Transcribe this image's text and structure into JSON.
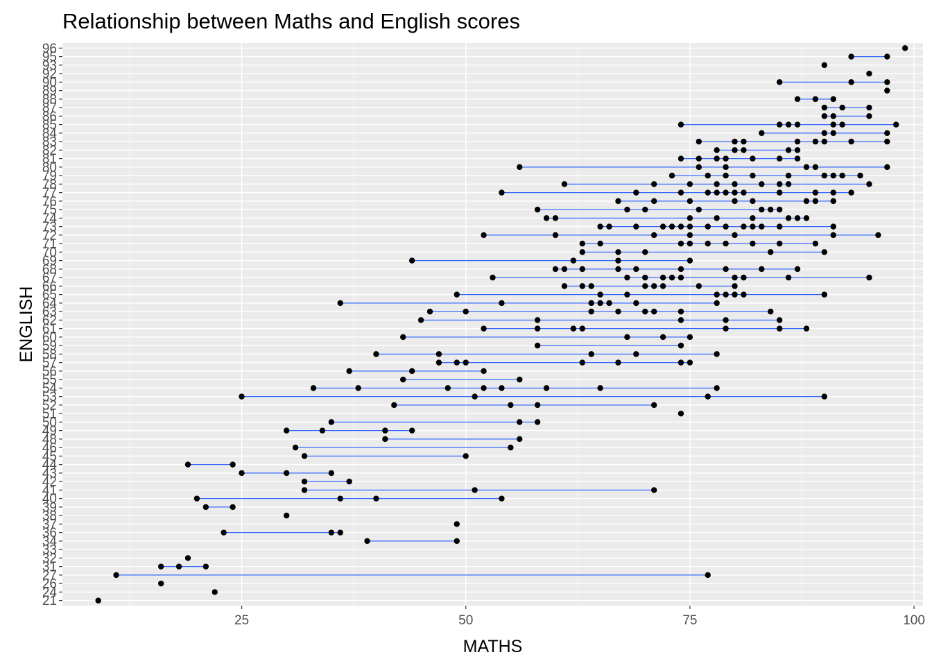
{
  "chart_data": {
    "type": "dot-range",
    "title": "Relationship between Maths and English scores",
    "xlabel": "MATHS",
    "ylabel": "ENGLISH",
    "xlim": [
      5,
      101
    ],
    "x_ticks": [
      25,
      50,
      75,
      100
    ],
    "grid": true,
    "colors": {
      "panel": "#ebebeb",
      "grid": "#ffffff",
      "segment": "#3366ff",
      "point": "#000000"
    },
    "categories": [
      "21",
      "24",
      "26",
      "27",
      "31",
      "32",
      "33",
      "34",
      "36",
      "37",
      "38",
      "39",
      "40",
      "41",
      "42",
      "43",
      "44",
      "45",
      "46",
      "48",
      "49",
      "50",
      "51",
      "52",
      "53",
      "54",
      "55",
      "56",
      "57",
      "58",
      "59",
      "60",
      "61",
      "62",
      "63",
      "64",
      "65",
      "66",
      "67",
      "68",
      "69",
      "70",
      "71",
      "72",
      "73",
      "74",
      "75",
      "76",
      "77",
      "78",
      "79",
      "80",
      "81",
      "82",
      "83",
      "84",
      "85",
      "86",
      "87",
      "88",
      "89",
      "90",
      "92",
      "93",
      "95",
      "96"
    ],
    "points": [
      {
        "english": "21",
        "maths": [
          9
        ]
      },
      {
        "english": "24",
        "maths": [
          22
        ]
      },
      {
        "english": "26",
        "maths": [
          16
        ]
      },
      {
        "english": "27",
        "maths": [
          11,
          77
        ]
      },
      {
        "english": "31",
        "maths": [
          16,
          18,
          21
        ]
      },
      {
        "english": "32",
        "maths": [
          19
        ]
      },
      {
        "english": "34",
        "maths": [
          39,
          49
        ]
      },
      {
        "english": "36",
        "maths": [
          23,
          35,
          36
        ]
      },
      {
        "english": "37",
        "maths": [
          49
        ]
      },
      {
        "english": "38",
        "maths": [
          30
        ]
      },
      {
        "english": "39",
        "maths": [
          21,
          24
        ]
      },
      {
        "english": "40",
        "maths": [
          20,
          36,
          40,
          54
        ]
      },
      {
        "english": "41",
        "maths": [
          32,
          51,
          71
        ]
      },
      {
        "english": "42",
        "maths": [
          32,
          37
        ]
      },
      {
        "english": "43",
        "maths": [
          25,
          30,
          35
        ]
      },
      {
        "english": "44",
        "maths": [
          19,
          24
        ]
      },
      {
        "english": "45",
        "maths": [
          32,
          50
        ]
      },
      {
        "english": "46",
        "maths": [
          31,
          55
        ]
      },
      {
        "english": "48",
        "maths": [
          41,
          56
        ]
      },
      {
        "english": "49",
        "maths": [
          30,
          34,
          41,
          44
        ]
      },
      {
        "english": "50",
        "maths": [
          35,
          56,
          58
        ]
      },
      {
        "english": "51",
        "maths": [
          74
        ]
      },
      {
        "english": "52",
        "maths": [
          42,
          55,
          58,
          71
        ]
      },
      {
        "english": "53",
        "maths": [
          25,
          51,
          77,
          90
        ]
      },
      {
        "english": "54",
        "maths": [
          33,
          38,
          48,
          52,
          54,
          59,
          65,
          78
        ]
      },
      {
        "english": "55",
        "maths": [
          43,
          56
        ]
      },
      {
        "english": "56",
        "maths": [
          37,
          44,
          52
        ]
      },
      {
        "english": "57",
        "maths": [
          47,
          49,
          50,
          63,
          67,
          74,
          75
        ]
      },
      {
        "english": "58",
        "maths": [
          40,
          47,
          64,
          69,
          78
        ]
      },
      {
        "english": "59",
        "maths": [
          58,
          74
        ]
      },
      {
        "english": "60",
        "maths": [
          43,
          68,
          72,
          75
        ]
      },
      {
        "english": "61",
        "maths": [
          52,
          58,
          62,
          63,
          79,
          85,
          88
        ]
      },
      {
        "english": "62",
        "maths": [
          45,
          58,
          74,
          79,
          85
        ]
      },
      {
        "english": "63",
        "maths": [
          46,
          50,
          64,
          67,
          70,
          71,
          74,
          84
        ]
      },
      {
        "english": "64",
        "maths": [
          36,
          54,
          64,
          65,
          66,
          69,
          78
        ]
      },
      {
        "english": "65",
        "maths": [
          49,
          65,
          68,
          78,
          79,
          80,
          81,
          90
        ]
      },
      {
        "english": "66",
        "maths": [
          61,
          63,
          64,
          70,
          71,
          72,
          76,
          80
        ]
      },
      {
        "english": "67",
        "maths": [
          53,
          68,
          70,
          72,
          73,
          74,
          80,
          81,
          86,
          95
        ]
      },
      {
        "english": "68",
        "maths": [
          60,
          61,
          63,
          67,
          69,
          74,
          79,
          83,
          87
        ]
      },
      {
        "english": "69",
        "maths": [
          44,
          62,
          67,
          75
        ]
      },
      {
        "english": "70",
        "maths": [
          63,
          67,
          70,
          84,
          90
        ]
      },
      {
        "english": "71",
        "maths": [
          63,
          65,
          74,
          75,
          77,
          79,
          82,
          85,
          89
        ]
      },
      {
        "english": "72",
        "maths": [
          52,
          60,
          71,
          75,
          80,
          91,
          96
        ]
      },
      {
        "english": "73",
        "maths": [
          65,
          66,
          69,
          72,
          73,
          74,
          75,
          77,
          79,
          81,
          82,
          83,
          85,
          91
        ]
      },
      {
        "english": "74",
        "maths": [
          59,
          60,
          75,
          78,
          82,
          86,
          87,
          88
        ]
      },
      {
        "english": "75",
        "maths": [
          58,
          68,
          70,
          76,
          83,
          84,
          85
        ]
      },
      {
        "english": "76",
        "maths": [
          67,
          71,
          75,
          80,
          82,
          88,
          89,
          91
        ]
      },
      {
        "english": "77",
        "maths": [
          54,
          69,
          74,
          77,
          78,
          79,
          80,
          81,
          85,
          89,
          91,
          93
        ]
      },
      {
        "english": "78",
        "maths": [
          61,
          71,
          75,
          78,
          80,
          83,
          85,
          86,
          95
        ]
      },
      {
        "english": "79",
        "maths": [
          73,
          77,
          79,
          82,
          86,
          90,
          91,
          92,
          94
        ]
      },
      {
        "english": "80",
        "maths": [
          56,
          76,
          79,
          88,
          89,
          97
        ]
      },
      {
        "english": "81",
        "maths": [
          74,
          76,
          78,
          79,
          82,
          85,
          87
        ]
      },
      {
        "english": "82",
        "maths": [
          78,
          80,
          81,
          86,
          87
        ]
      },
      {
        "english": "83",
        "maths": [
          76,
          80,
          81,
          87,
          89,
          90,
          93,
          97
        ]
      },
      {
        "english": "84",
        "maths": [
          83,
          90,
          91,
          97
        ]
      },
      {
        "english": "85",
        "maths": [
          74,
          85,
          86,
          87,
          91,
          92,
          98
        ]
      },
      {
        "english": "86",
        "maths": [
          90,
          91,
          95
        ]
      },
      {
        "english": "87",
        "maths": [
          90,
          92,
          95
        ]
      },
      {
        "english": "88",
        "maths": [
          87,
          89,
          91
        ]
      },
      {
        "english": "89",
        "maths": [
          97
        ]
      },
      {
        "english": "90",
        "maths": [
          85,
          93,
          97
        ]
      },
      {
        "english": "92",
        "maths": [
          95
        ]
      },
      {
        "english": "93",
        "maths": [
          90
        ]
      },
      {
        "english": "95",
        "maths": [
          93,
          97
        ]
      },
      {
        "english": "96",
        "maths": [
          99
        ]
      }
    ]
  }
}
